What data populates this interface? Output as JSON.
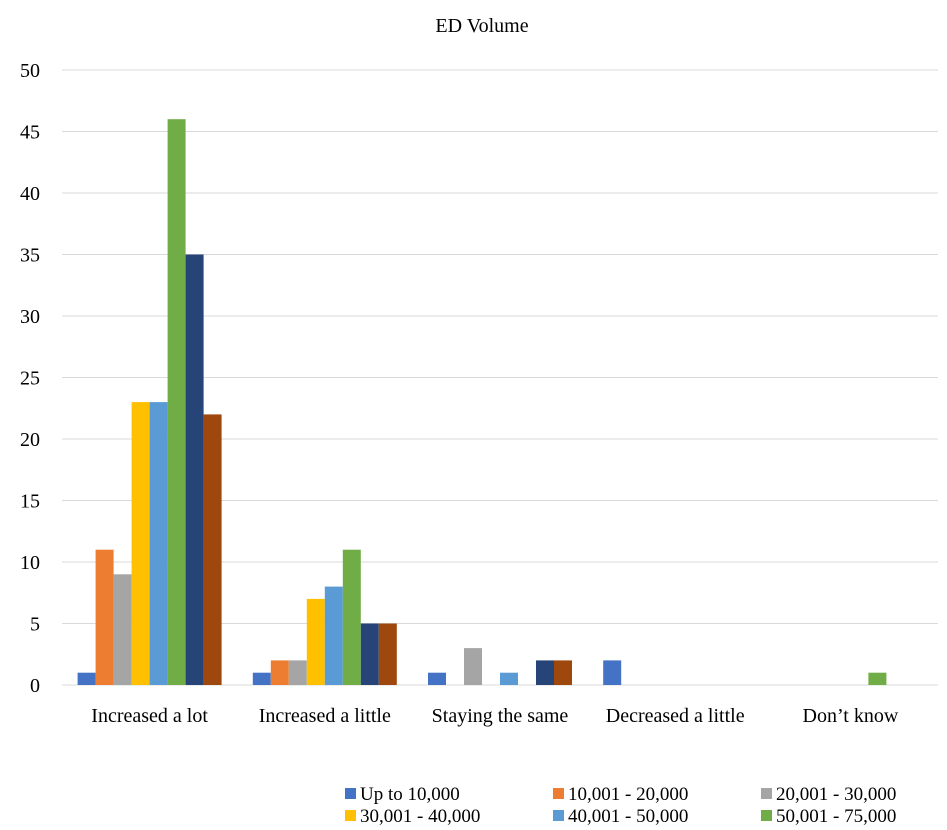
{
  "chart_data": {
    "type": "bar",
    "title": "ED Volume",
    "xlabel": "",
    "ylabel": "",
    "ylim": [
      0,
      50
    ],
    "yticks": [
      0,
      5,
      10,
      15,
      20,
      25,
      30,
      35,
      40,
      45,
      50
    ],
    "grid": true,
    "legend_position": "bottom-right",
    "categories": [
      "Increased a lot",
      "Increased a little",
      "Staying the same",
      "Decreased a little",
      "Don’t know"
    ],
    "series": [
      {
        "name": "Up to 10,000",
        "color": "#4472C4",
        "values": [
          1,
          1,
          1,
          2,
          0
        ]
      },
      {
        "name": "10,001 - 20,000",
        "color": "#ED7D31",
        "values": [
          11,
          2,
          0,
          0,
          0
        ]
      },
      {
        "name": "20,001 - 30,000",
        "color": "#A5A5A5",
        "values": [
          9,
          2,
          3,
          0,
          0
        ]
      },
      {
        "name": "30,001 - 40,000",
        "color": "#FFC000",
        "values": [
          23,
          7,
          0,
          0,
          0
        ]
      },
      {
        "name": "40,001 - 50,000",
        "color": "#5B9BD5",
        "values": [
          23,
          8,
          1,
          0,
          0
        ]
      },
      {
        "name": "50,001 - 75,000",
        "color": "#70AD47",
        "values": [
          46,
          11,
          0,
          0,
          1
        ]
      },
      {
        "name": "",
        "color": "#264478",
        "values": [
          35,
          5,
          2,
          0,
          0
        ]
      },
      {
        "name": "",
        "color": "#9E480E",
        "values": [
          22,
          5,
          2,
          0,
          0
        ]
      }
    ]
  }
}
